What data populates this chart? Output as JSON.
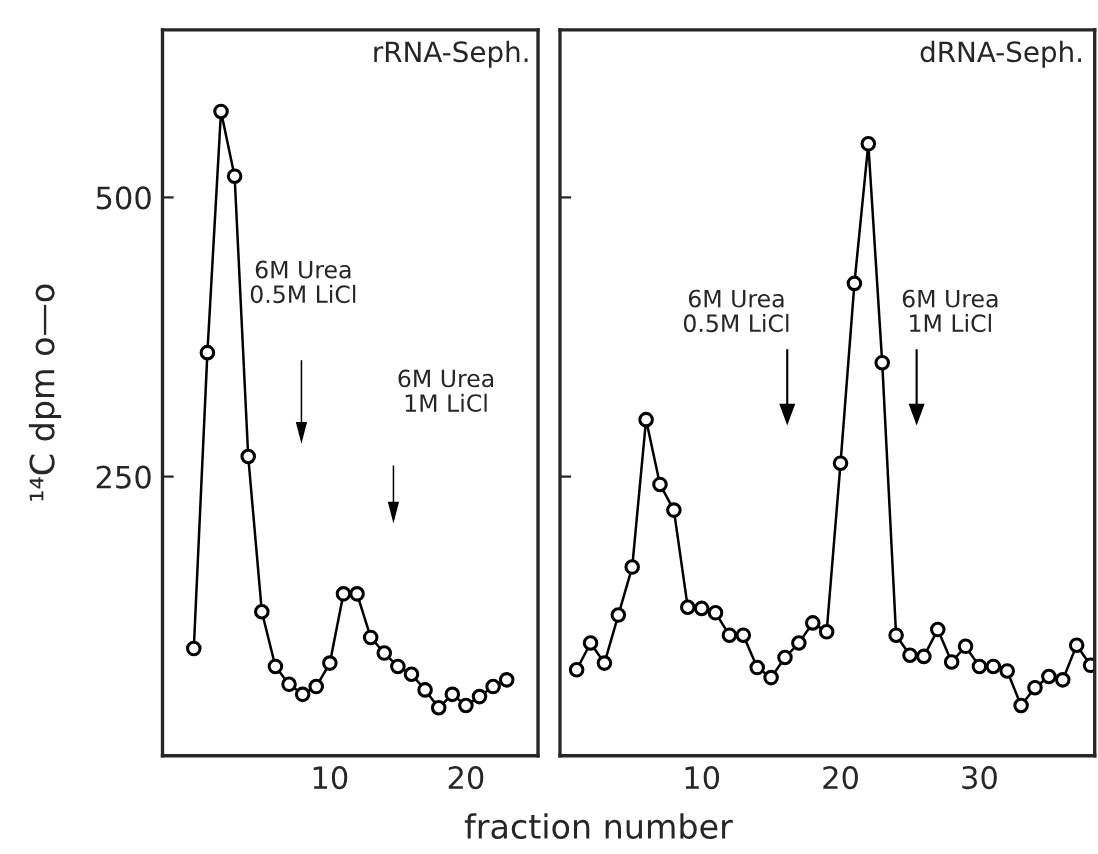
{
  "chart_data": [
    {
      "type": "line",
      "title": "rRNA-Seph.",
      "xlabel": "fraction number",
      "ylabel": "¹⁴C dpm o—o",
      "x": [
        0,
        1,
        2,
        3,
        4,
        5,
        6,
        7,
        8,
        9,
        10,
        11,
        12,
        13,
        14,
        15,
        16,
        17,
        18,
        19,
        20,
        21,
        22,
        23
      ],
      "series": [
        {
          "color": "#000000",
          "values": [
            96,
            361,
            577,
            519,
            268,
            129,
            80,
            64,
            55,
            62,
            83,
            145,
            145,
            106,
            92,
            80,
            73,
            59,
            43,
            55,
            45,
            53,
            62,
            68
          ]
        }
      ],
      "xlim": [
        -2.3,
        25.3
      ],
      "xticks": [
        10,
        20
      ],
      "ylim": [
        0,
        650
      ],
      "yticks": [
        250,
        500
      ],
      "marker": "circle",
      "line_style": "solid",
      "grid": false,
      "annotations": [
        "6M Urea\n0.5M LiCl",
        "6M Urea\n1M LiCl"
      ]
    },
    {
      "type": "line",
      "title": "dRNA-Seph.",
      "x": [
        1,
        2,
        3,
        4,
        5,
        6,
        7,
        8,
        9,
        10,
        11,
        12,
        13,
        14,
        15,
        16,
        17,
        18,
        19,
        20,
        21,
        22,
        23,
        24,
        25,
        26,
        27,
        28,
        29,
        30,
        31,
        32,
        33,
        34,
        35,
        36,
        37,
        38
      ],
      "series": [
        {
          "color": "#000000",
          "values": [
            77,
            101,
            83,
            126,
            169,
            301,
            243,
            220,
            133,
            132,
            128,
            108,
            108,
            79,
            70,
            88,
            101,
            119,
            111,
            262,
            423,
            548,
            352,
            108,
            90,
            89,
            113,
            84,
            98,
            80,
            80,
            76,
            45,
            61,
            71,
            68,
            99,
            81
          ]
        }
      ],
      "xlim": [
        -0.2,
        38.3
      ],
      "xticks": [
        10,
        20,
        30
      ],
      "ylim": [
        0,
        650
      ],
      "yticks": [
        {
          "value": 250,
          "label": null
        },
        {
          "value": 500,
          "label": null
        }
      ],
      "tick_labels": "x",
      "marker": "circle",
      "line_style": "solid",
      "grid": false,
      "annotations": [
        "6M Urea\n0.5M LiCl",
        "6M Urea\n1M LiCl"
      ]
    }
  ]
}
